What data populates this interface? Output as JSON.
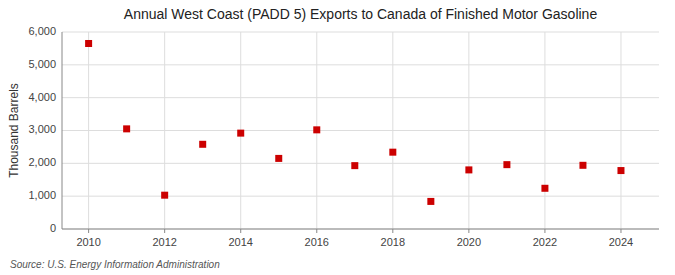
{
  "chart_data": {
    "type": "scatter",
    "title": "Annual West Coast (PADD 5) Exports to Canada of Finished Motor Gasoline",
    "ylabel": "Thousand Barrels",
    "source": "Source: U.S. Energy Information Administration",
    "x": [
      2010,
      2011,
      2012,
      2013,
      2014,
      2015,
      2016,
      2017,
      2018,
      2019,
      2020,
      2021,
      2022,
      2023,
      2024
    ],
    "values": [
      5650,
      3050,
      1030,
      2580,
      2920,
      2150,
      3020,
      1930,
      2340,
      840,
      1800,
      1960,
      1240,
      1940,
      1780
    ],
    "color": "#cc0000",
    "marker": "square",
    "xlim": [
      2009.3,
      2025.0
    ],
    "ylim": [
      0,
      6000
    ],
    "xticks": [
      2010,
      2012,
      2014,
      2016,
      2018,
      2020,
      2022,
      2024
    ],
    "yticks": [
      0,
      {
        "value": 1000,
        "label": "1,000"
      },
      {
        "value": 2000,
        "label": "2,000"
      },
      {
        "value": 3000,
        "label": "3,000"
      },
      {
        "value": 4000,
        "label": "4,000"
      },
      {
        "value": 5000,
        "label": "5,000"
      },
      {
        "value": 6000,
        "label": "6,000"
      }
    ],
    "grid": true
  }
}
